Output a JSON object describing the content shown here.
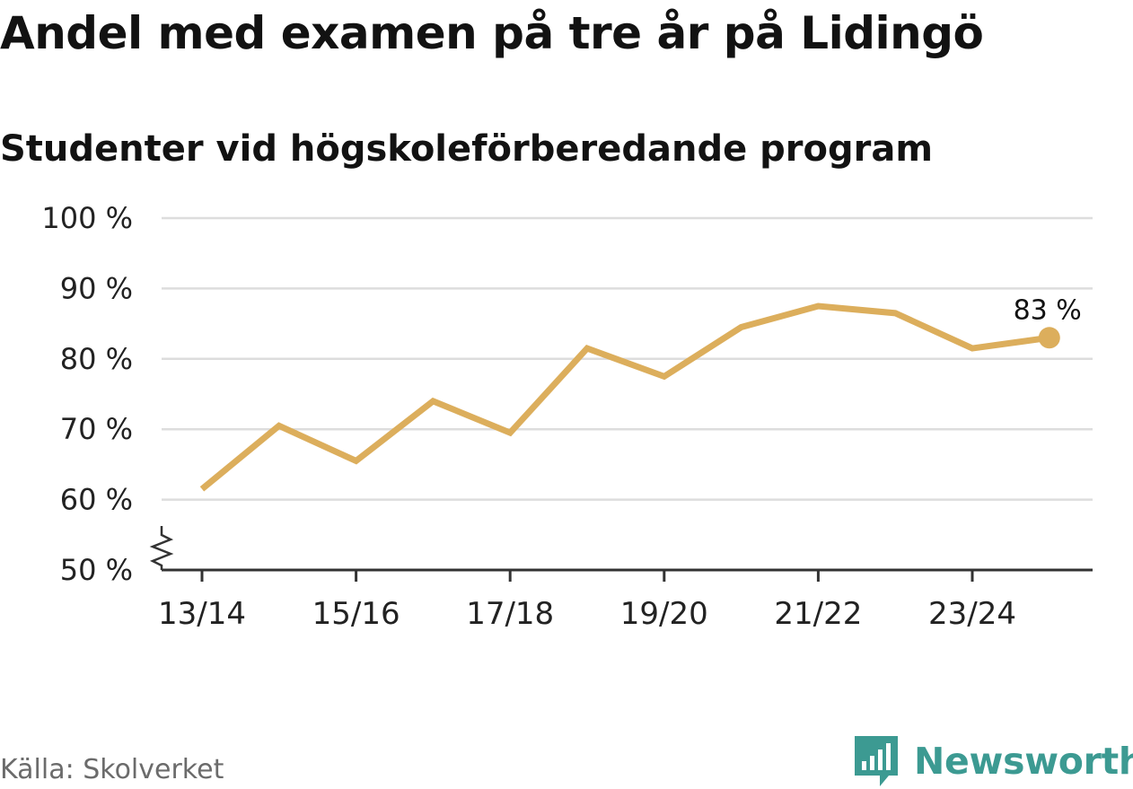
{
  "title": "Andel med examen på tre år på Lidingö",
  "subtitle": "Studenter vid högskoleförberedande program",
  "source": "Källa: Skolverket",
  "brand": {
    "name": "Newsworthy",
    "logo_icon": "bar-chart-flag-icon",
    "color": "#3c9a92"
  },
  "chart_data": {
    "type": "line",
    "title": "Andel med examen på tre år på Lidingö",
    "subtitle": "Studenter vid högskoleförberedande program",
    "xlabel": "",
    "ylabel": "",
    "x": [
      "13/14",
      "14/15",
      "15/16",
      "16/17",
      "17/18",
      "18/19",
      "19/20",
      "20/21",
      "21/22",
      "22/23",
      "23/24",
      "24/25"
    ],
    "x_tick_labels": [
      "13/14",
      "15/16",
      "17/18",
      "19/20",
      "21/22",
      "23/24"
    ],
    "series": [
      {
        "name": "Andel med examen",
        "values": [
          61.5,
          70.5,
          65.5,
          74,
          69.5,
          81.5,
          77.5,
          84.5,
          87.5,
          86.5,
          81.5,
          83
        ],
        "color": "#dcae5c"
      }
    ],
    "ylim": [
      50,
      100
    ],
    "y_ticks": [
      50,
      60,
      70,
      80,
      90,
      100
    ],
    "y_tick_labels": [
      "50 %",
      "60 %",
      "70 %",
      "80 %",
      "90 %",
      "100 %"
    ],
    "axis_break": true,
    "grid": true,
    "end_label": "83 %"
  }
}
